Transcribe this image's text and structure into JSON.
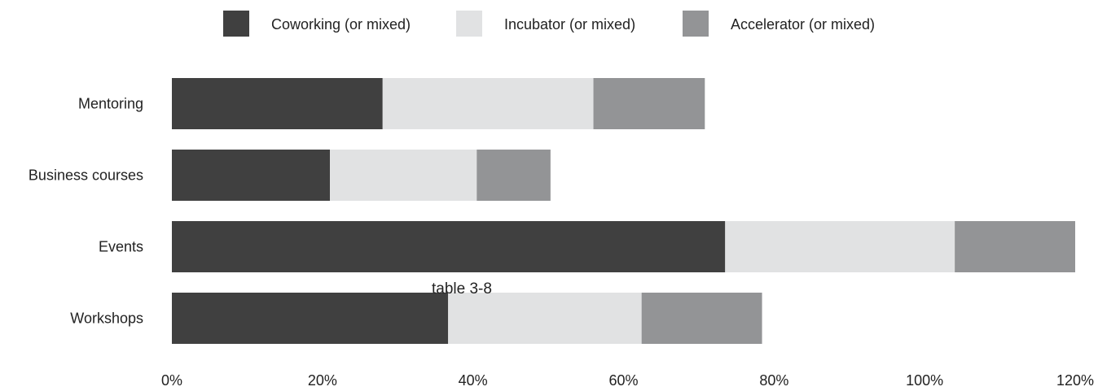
{
  "chart_data": {
    "type": "bar",
    "orientation": "horizontal",
    "stacked": true,
    "categories": [
      "Mentoring",
      "Business courses",
      "Events",
      "Workshops"
    ],
    "series": [
      {
        "name": "Coworking (or mixed)",
        "color": "#404040",
        "values": [
          0.28,
          0.21,
          0.735,
          0.367
        ]
      },
      {
        "name": "Incubator (or mixed)",
        "color": "#e1e2e3",
        "values": [
          0.28,
          0.195,
          0.305,
          0.257
        ]
      },
      {
        "name": "Accelerator (or mixed)",
        "color": "#939496",
        "values": [
          0.148,
          0.098,
          0.16,
          0.16
        ]
      }
    ],
    "xlim": [
      0,
      1.2
    ],
    "xticks": [
      "0%",
      "20%",
      "40%",
      "60%",
      "80%",
      "100%",
      "120%"
    ],
    "annotation": "table 3-8",
    "legend_position": "top",
    "grid": false
  }
}
